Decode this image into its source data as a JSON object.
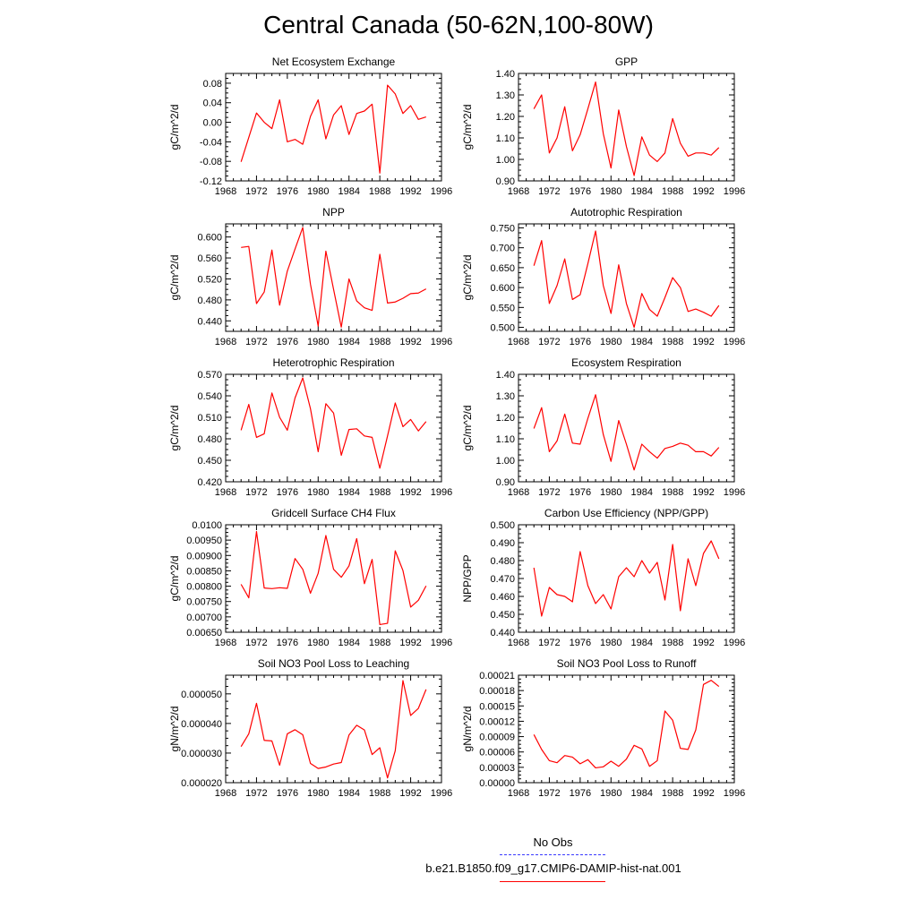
{
  "title": "Central Canada (50-62N,100-80W)",
  "legend": {
    "obs_label": "No Obs",
    "obs_color": "#3a3aff",
    "model_label": "b.e21.B1850.f09_g17.CMIP6-DAMIP-hist-nat.001",
    "model_color": "#ff0000"
  },
  "colors": {
    "line": "#ff0000",
    "axis": "#000000"
  },
  "chart_data": [
    {
      "type": "line",
      "title": "Net Ecosystem Exchange",
      "ylabel": "gC/m^2/d",
      "xlabel": "",
      "xlim": [
        1968,
        1996
      ],
      "ylim": [
        -0.12,
        0.1
      ],
      "xticks": [
        "1968",
        "1972",
        "1976",
        "1980",
        "1984",
        "1988",
        "1992",
        "1996"
      ],
      "yticks": [
        "-0.12",
        "-0.08",
        "-0.04",
        "0.00",
        "0.04",
        "0.08"
      ],
      "ytick_values": [
        -0.12,
        -0.08,
        -0.04,
        0.0,
        0.04,
        0.08
      ],
      "x": [
        1970,
        1971,
        1972,
        1973,
        1974,
        1975,
        1976,
        1977,
        1978,
        1979,
        1980,
        1981,
        1982,
        1983,
        1984,
        1985,
        1986,
        1987,
        1988,
        1989,
        1990,
        1991,
        1992,
        1993,
        1994
      ],
      "series": [
        {
          "values": [
            -0.081,
            -0.031,
            0.019,
            0.0,
            -0.013,
            0.046,
            -0.04,
            -0.035,
            -0.045,
            0.012,
            0.046,
            -0.034,
            0.015,
            0.034,
            -0.025,
            0.018,
            0.023,
            0.037,
            -0.104,
            0.076,
            0.058,
            0.018,
            0.034,
            0.006,
            0.011
          ]
        }
      ]
    },
    {
      "type": "line",
      "title": "GPP",
      "ylabel": "gC/m^2/d",
      "xlabel": "",
      "xlim": [
        1968,
        1996
      ],
      "ylim": [
        0.9,
        1.4
      ],
      "xticks": [
        "1968",
        "1972",
        "1976",
        "1980",
        "1984",
        "1988",
        "1992",
        "1996"
      ],
      "yticks": [
        "0.90",
        "1.00",
        "1.10",
        "1.20",
        "1.30",
        "1.40"
      ],
      "ytick_values": [
        0.9,
        1.0,
        1.1,
        1.2,
        1.3,
        1.4
      ],
      "x": [
        1970,
        1971,
        1972,
        1973,
        1974,
        1975,
        1976,
        1977,
        1978,
        1979,
        1980,
        1981,
        1982,
        1983,
        1984,
        1985,
        1986,
        1987,
        1988,
        1989,
        1990,
        1991,
        1992,
        1993,
        1994
      ],
      "series": [
        {
          "values": [
            1.235,
            1.3,
            1.03,
            1.1,
            1.245,
            1.04,
            1.115,
            1.235,
            1.36,
            1.12,
            0.96,
            1.23,
            1.06,
            0.925,
            1.105,
            1.02,
            0.99,
            1.03,
            1.19,
            1.075,
            1.015,
            1.03,
            1.03,
            1.02,
            1.055
          ]
        }
      ]
    },
    {
      "type": "line",
      "title": "NPP",
      "ylabel": "gC/m^2/d",
      "xlabel": "",
      "xlim": [
        1968,
        1996
      ],
      "ylim": [
        0.42,
        0.625
      ],
      "xticks": [
        "1968",
        "1972",
        "1976",
        "1980",
        "1984",
        "1988",
        "1992",
        "1996"
      ],
      "yticks": [
        "0.440",
        "0.480",
        "0.520",
        "0.560",
        "0.600"
      ],
      "ytick_values": [
        0.44,
        0.48,
        0.52,
        0.56,
        0.6
      ],
      "x": [
        1970,
        1971,
        1972,
        1973,
        1974,
        1975,
        1976,
        1977,
        1978,
        1979,
        1980,
        1981,
        1982,
        1983,
        1984,
        1985,
        1986,
        1987,
        1988,
        1989,
        1990,
        1991,
        1992,
        1993,
        1994
      ],
      "series": [
        {
          "values": [
            0.58,
            0.582,
            0.473,
            0.495,
            0.575,
            0.47,
            0.535,
            0.577,
            0.618,
            0.51,
            0.43,
            0.573,
            0.5,
            0.428,
            0.52,
            0.478,
            0.465,
            0.46,
            0.567,
            0.474,
            0.476,
            0.483,
            0.492,
            0.493,
            0.501
          ]
        }
      ]
    },
    {
      "type": "line",
      "title": "Autotrophic Respiration",
      "ylabel": "gC/m^2/d",
      "xlabel": "",
      "xlim": [
        1968,
        1996
      ],
      "ylim": [
        0.49,
        0.76
      ],
      "xticks": [
        "1968",
        "1972",
        "1976",
        "1980",
        "1984",
        "1988",
        "1992",
        "1996"
      ],
      "yticks": [
        "0.500",
        "0.550",
        "0.600",
        "0.650",
        "0.700",
        "0.750"
      ],
      "ytick_values": [
        0.5,
        0.55,
        0.6,
        0.65,
        0.7,
        0.75
      ],
      "x": [
        1970,
        1971,
        1972,
        1973,
        1974,
        1975,
        1976,
        1977,
        1978,
        1979,
        1980,
        1981,
        1982,
        1983,
        1984,
        1985,
        1986,
        1987,
        1988,
        1989,
        1990,
        1991,
        1992,
        1993,
        1994
      ],
      "series": [
        {
          "values": [
            0.655,
            0.718,
            0.56,
            0.605,
            0.672,
            0.57,
            0.582,
            0.66,
            0.742,
            0.605,
            0.535,
            0.657,
            0.56,
            0.5,
            0.585,
            0.545,
            0.528,
            0.575,
            0.625,
            0.6,
            0.54,
            0.546,
            0.538,
            0.528,
            0.555
          ]
        }
      ]
    },
    {
      "type": "line",
      "title": "Heterotrophic Respiration",
      "ylabel": "gC/m^2/d",
      "xlabel": "",
      "xlim": [
        1968,
        1996
      ],
      "ylim": [
        0.42,
        0.57
      ],
      "xticks": [
        "1968",
        "1972",
        "1976",
        "1980",
        "1984",
        "1988",
        "1992",
        "1996"
      ],
      "yticks": [
        "0.420",
        "0.450",
        "0.480",
        "0.510",
        "0.540",
        "0.570"
      ],
      "ytick_values": [
        0.42,
        0.45,
        0.48,
        0.51,
        0.54,
        0.57
      ],
      "x": [
        1970,
        1971,
        1972,
        1973,
        1974,
        1975,
        1976,
        1977,
        1978,
        1979,
        1980,
        1981,
        1982,
        1983,
        1984,
        1985,
        1986,
        1987,
        1988,
        1989,
        1990,
        1991,
        1992,
        1993,
        1994
      ],
      "series": [
        {
          "values": [
            0.492,
            0.528,
            0.482,
            0.487,
            0.544,
            0.51,
            0.492,
            0.537,
            0.565,
            0.522,
            0.462,
            0.529,
            0.516,
            0.457,
            0.493,
            0.494,
            0.484,
            0.482,
            0.439,
            0.484,
            0.53,
            0.497,
            0.507,
            0.491,
            0.504
          ]
        }
      ]
    },
    {
      "type": "line",
      "title": "Ecosystem Respiration",
      "ylabel": "gC/m^2/d",
      "xlabel": "",
      "xlim": [
        1968,
        1996
      ],
      "ylim": [
        0.9,
        1.4
      ],
      "xticks": [
        "1968",
        "1972",
        "1976",
        "1980",
        "1984",
        "1988",
        "1992",
        "1996"
      ],
      "yticks": [
        "0.90",
        "1.00",
        "1.10",
        "1.20",
        "1.30",
        "1.40"
      ],
      "ytick_values": [
        0.9,
        1.0,
        1.1,
        1.2,
        1.3,
        1.4
      ],
      "x": [
        1970,
        1971,
        1972,
        1973,
        1974,
        1975,
        1976,
        1977,
        1978,
        1979,
        1980,
        1981,
        1982,
        1983,
        1984,
        1985,
        1986,
        1987,
        1988,
        1989,
        1990,
        1991,
        1992,
        1993,
        1994
      ],
      "series": [
        {
          "values": [
            1.148,
            1.245,
            1.04,
            1.09,
            1.215,
            1.08,
            1.075,
            1.195,
            1.305,
            1.12,
            0.995,
            1.185,
            1.075,
            0.955,
            1.075,
            1.04,
            1.01,
            1.055,
            1.065,
            1.08,
            1.07,
            1.04,
            1.04,
            1.02,
            1.06
          ]
        }
      ]
    },
    {
      "type": "line",
      "title": "Gridcell Surface CH4 Flux",
      "ylabel": "gC/m^2/d",
      "xlabel": "",
      "xlim": [
        1968,
        1996
      ],
      "ylim": [
        0.0065,
        0.01
      ],
      "xticks": [
        "1968",
        "1972",
        "1976",
        "1980",
        "1984",
        "1988",
        "1992",
        "1996"
      ],
      "yticks": [
        "0.00650",
        "0.00700",
        "0.00750",
        "0.00800",
        "0.00850",
        "0.00900",
        "0.00950",
        "0.0100"
      ],
      "ytick_values": [
        0.0065,
        0.007,
        0.0075,
        0.008,
        0.0085,
        0.009,
        0.0095,
        0.01
      ],
      "x": [
        1970,
        1971,
        1972,
        1973,
        1974,
        1975,
        1976,
        1977,
        1978,
        1979,
        1980,
        1981,
        1982,
        1983,
        1984,
        1985,
        1986,
        1987,
        1988,
        1989,
        1990,
        1991,
        1992,
        1993,
        1994
      ],
      "series": [
        {
          "values": [
            0.00806,
            0.00762,
            0.00978,
            0.00794,
            0.00792,
            0.00795,
            0.00793,
            0.0089,
            0.00855,
            0.00777,
            0.00842,
            0.00965,
            0.00855,
            0.00829,
            0.00866,
            0.00955,
            0.00808,
            0.00887,
            0.00675,
            0.00679,
            0.00915,
            0.00851,
            0.00732,
            0.00754,
            0.00801
          ]
        }
      ]
    },
    {
      "type": "line",
      "title": "Carbon Use Efficiency (NPP/GPP)",
      "ylabel": "NPP/GPP",
      "xlabel": "",
      "xlim": [
        1968,
        1996
      ],
      "ylim": [
        0.44,
        0.5
      ],
      "xticks": [
        "1968",
        "1972",
        "1976",
        "1980",
        "1984",
        "1988",
        "1992",
        "1996"
      ],
      "yticks": [
        "0.440",
        "0.450",
        "0.460",
        "0.470",
        "0.480",
        "0.490",
        "0.500"
      ],
      "ytick_values": [
        0.44,
        0.45,
        0.46,
        0.47,
        0.48,
        0.49,
        0.5
      ],
      "x": [
        1970,
        1971,
        1972,
        1973,
        1974,
        1975,
        1976,
        1977,
        1978,
        1979,
        1980,
        1981,
        1982,
        1983,
        1984,
        1985,
        1986,
        1987,
        1988,
        1989,
        1990,
        1991,
        1992,
        1993,
        1994
      ],
      "series": [
        {
          "values": [
            0.476,
            0.449,
            0.465,
            0.461,
            0.46,
            0.457,
            0.485,
            0.466,
            0.456,
            0.461,
            0.453,
            0.471,
            0.476,
            0.471,
            0.48,
            0.473,
            0.479,
            0.458,
            0.489,
            0.452,
            0.481,
            0.466,
            0.484,
            0.491,
            0.481
          ]
        }
      ]
    },
    {
      "type": "line",
      "title": "Soil NO3 Pool Loss to Leaching",
      "ylabel": "gN/m^2/d",
      "xlabel": "",
      "xlim": [
        1968,
        1996
      ],
      "ylim": [
        2e-05,
        5.63e-05
      ],
      "xticks": [
        "1968",
        "1972",
        "1976",
        "1980",
        "1984",
        "1988",
        "1992",
        "1996"
      ],
      "yticks": [
        "0.000020",
        "0.000030",
        "0.000040",
        "0.000050"
      ],
      "ytick_values": [
        2e-05,
        3e-05,
        4e-05,
        5e-05
      ],
      "x": [
        1970,
        1971,
        1972,
        1973,
        1974,
        1975,
        1976,
        1977,
        1978,
        1979,
        1980,
        1981,
        1982,
        1983,
        1984,
        1985,
        1986,
        1987,
        1988,
        1989,
        1990,
        1991,
        1992,
        1993,
        1994
      ],
      "series": [
        {
          "values": [
            3.22e-05,
            3.65e-05,
            4.68e-05,
            3.43e-05,
            3.41e-05,
            2.59e-05,
            3.65e-05,
            3.79e-05,
            3.62e-05,
            2.65e-05,
            2.48e-05,
            2.53e-05,
            2.63e-05,
            2.68e-05,
            3.61e-05,
            3.94e-05,
            3.78e-05,
            2.95e-05,
            3.18e-05,
            2.16e-05,
            3.08e-05,
            5.45e-05,
            4.27e-05,
            4.51e-05,
            5.15e-05
          ]
        }
      ]
    },
    {
      "type": "line",
      "title": "Soil NO3 Pool Loss to Runoff",
      "ylabel": "gN/m^2/d",
      "xlabel": "",
      "xlim": [
        1968,
        1996
      ],
      "ylim": [
        0.0,
        0.00021
      ],
      "xticks": [
        "1968",
        "1972",
        "1976",
        "1980",
        "1984",
        "1988",
        "1992",
        "1996"
      ],
      "yticks": [
        "0.00000",
        "0.00003",
        "0.00006",
        "0.00009",
        "0.00012",
        "0.00015",
        "0.00018",
        "0.00021"
      ],
      "ytick_values": [
        0.0,
        3e-05,
        6e-05,
        9e-05,
        0.00012,
        0.00015,
        0.00018,
        0.00021
      ],
      "x": [
        1970,
        1971,
        1972,
        1973,
        1974,
        1975,
        1976,
        1977,
        1978,
        1979,
        1980,
        1981,
        1982,
        1983,
        1984,
        1985,
        1986,
        1987,
        1988,
        1989,
        1990,
        1991,
        1992,
        1993,
        1994
      ],
      "series": [
        {
          "values": [
            9.4e-05,
            6.5e-05,
            4.3e-05,
            3.9e-05,
            5.3e-05,
            5e-05,
            3.7e-05,
            4.5e-05,
            2.9e-05,
            3.1e-05,
            4.2e-05,
            3.2e-05,
            4.6e-05,
            7.3e-05,
            6.6e-05,
            3.2e-05,
            4.3e-05,
            0.00014,
            0.000122,
            6.7e-05,
            6.5e-05,
            0.000103,
            0.000192,
            0.0002,
            0.000188
          ]
        }
      ]
    }
  ]
}
